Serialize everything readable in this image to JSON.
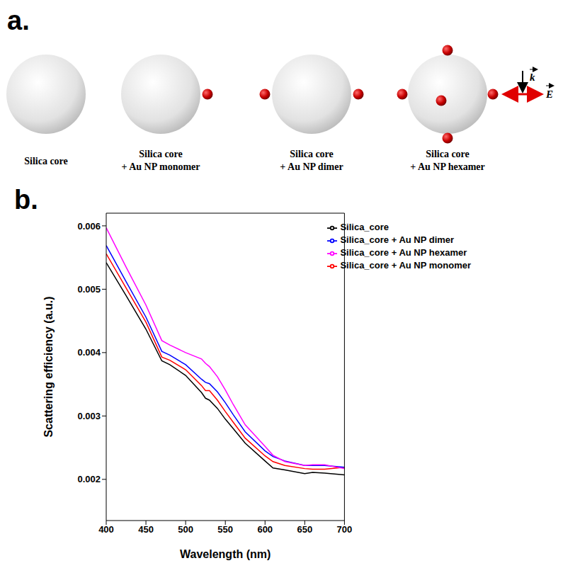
{
  "panel_labels": [
    "a.",
    "b."
  ],
  "panel_a": {
    "items": [
      {
        "label": [
          "Silica core"
        ]
      },
      {
        "label": [
          "Silica core",
          "+ Au NP monomer"
        ]
      },
      {
        "label": [
          "Silica core",
          "+ Au NP dimer"
        ]
      },
      {
        "label": [
          "Silica core",
          "+ Au NP hexamer"
        ]
      }
    ],
    "wave_vector": "k",
    "field": "E"
  },
  "chart_data": {
    "type": "line",
    "x_label": "Wavelength (nm)",
    "y_label": "Scattering efficiency (a.u.)",
    "x": [
      400,
      425,
      450,
      470,
      480,
      500,
      520,
      525,
      530,
      540,
      550,
      560,
      575,
      600,
      610,
      625,
      650,
      660,
      675,
      700
    ],
    "series": [
      {
        "name": "Silica_core",
        "color": "#000000",
        "values": [
          0.00542,
          0.0049,
          0.00437,
          0.00387,
          0.00381,
          0.00364,
          0.00337,
          0.00328,
          0.00325,
          0.00312,
          0.00295,
          0.0028,
          0.00257,
          0.00229,
          0.00218,
          0.00215,
          0.00209,
          0.00211,
          0.0021,
          0.00207
        ]
      },
      {
        "name": "Silica_core + Au NP monomer",
        "color": "#ff0000",
        "values": [
          0.00556,
          0.00502,
          0.00448,
          0.00393,
          0.00388,
          0.00373,
          0.00348,
          0.0034,
          0.0034,
          0.00325,
          0.00307,
          0.0029,
          0.00265,
          0.00237,
          0.00228,
          0.00222,
          0.00217,
          0.00216,
          0.00216,
          0.00219
        ]
      },
      {
        "name": "Silica_core + Au NP dimer",
        "color": "#0000ff",
        "values": [
          0.00569,
          0.00512,
          0.00456,
          0.00402,
          0.00396,
          0.00381,
          0.00358,
          0.00353,
          0.00351,
          0.00338,
          0.00321,
          0.00302,
          0.00275,
          0.00245,
          0.00236,
          0.00229,
          0.00222,
          0.00222,
          0.00222,
          0.00219
        ]
      },
      {
        "name": "Silica_core + Au NP hexamer",
        "color": "#ff00ff",
        "values": [
          0.00597,
          0.00535,
          0.00475,
          0.00419,
          0.00412,
          0.004,
          0.0039,
          0.00383,
          0.00378,
          0.00362,
          0.00341,
          0.00318,
          0.00286,
          0.00252,
          0.00238,
          0.00228,
          0.00222,
          0.00223,
          0.00223,
          0.00217
        ]
      }
    ],
    "xlim": [
      400,
      700
    ],
    "xticks": [
      400,
      450,
      500,
      550,
      600,
      650,
      700
    ],
    "ylim": [
      0.00135,
      0.0062
    ],
    "yticks": [
      0.002,
      0.003,
      0.004,
      0.005,
      0.006
    ],
    "legend": "upper right",
    "grid": false
  }
}
